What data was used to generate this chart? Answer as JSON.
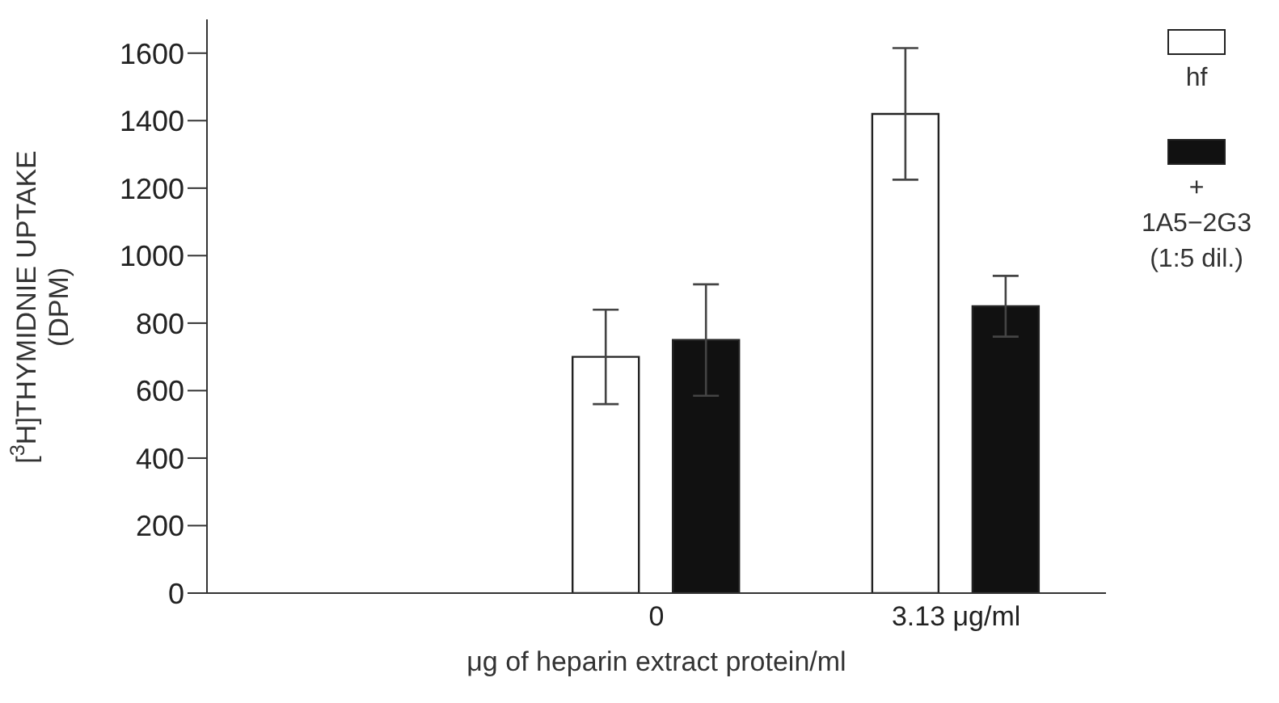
{
  "chart_data": {
    "type": "bar",
    "xlabel": "μg of heparin extract protein/ml",
    "ylabel": "[$^{3}$H]THYMIDNIE UPTAKE (DPM)",
    "categories": [
      null,
      "0",
      "3.13 μg/ml"
    ],
    "series": [
      {
        "name": "hf",
        "color": "#ffffff",
        "values": [
          null,
          700,
          1420
        ],
        "errors": [
          null,
          140,
          195
        ]
      },
      {
        "name": "+ 1A5−2G3 (1:5 dil.)",
        "color": "#111111",
        "values": [
          null,
          750,
          850
        ],
        "errors": [
          null,
          165,
          90
        ]
      }
    ],
    "ylim": [
      0,
      1700
    ],
    "yticks": [
      0,
      200,
      400,
      600,
      800,
      1000,
      1200,
      1400,
      1600
    ],
    "legend": "right",
    "grid": false
  }
}
